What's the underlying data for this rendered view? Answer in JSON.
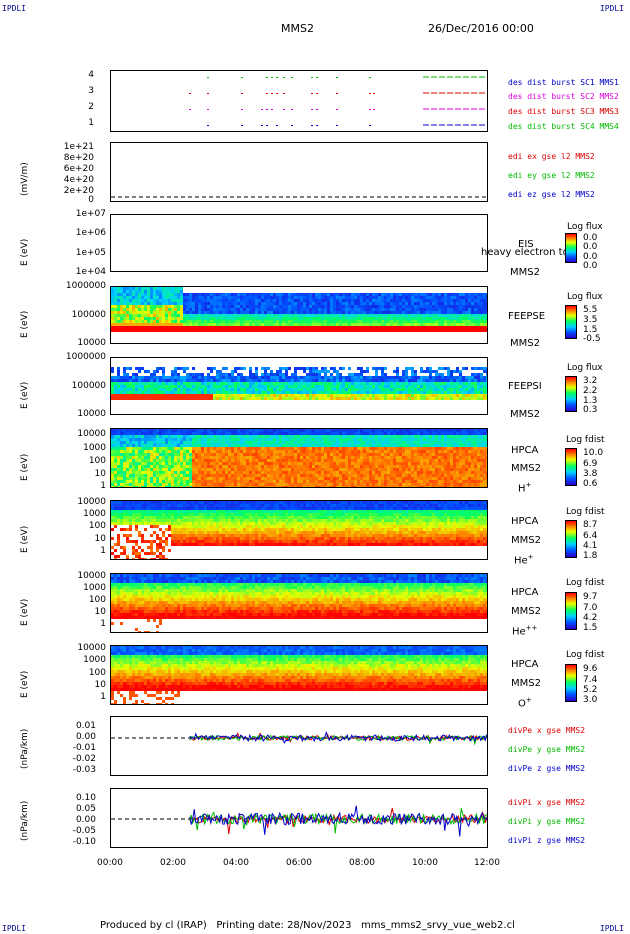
{
  "header": {
    "corner_tl": "IPDLI",
    "corner_tr": "IPDLI",
    "corner_bl": "IPDLI",
    "corner_br": "IPDLI",
    "mission": "MMS2",
    "date": "26/Dec/2016 00:00"
  },
  "footer": {
    "text": "Produced by cl (IRAP)   Printing date: 28/Nov/2023   mms_mms2_srvy_vue_web2.cl"
  },
  "x_ticks": [
    "00:00",
    "02:00",
    "04:00",
    "06:00",
    "08:00",
    "10:00",
    "12:00"
  ],
  "panels": {
    "burst": {
      "yticks": [
        "4",
        "3",
        "2",
        "1"
      ],
      "legend": [
        {
          "text": "des dist burst SC1 MMS1",
          "color": "#0000cc"
        },
        {
          "text": "des dist burst SC2 MMS2",
          "color": "#dd00dd"
        },
        {
          "text": "des dist burst SC3 MMS3",
          "color": "#dd0000"
        },
        {
          "text": "des dist burst SC4 MMS4",
          "color": "#00bb00"
        }
      ]
    },
    "edi": {
      "ylabel": "(mV/m)",
      "yticks": [
        "1e+21",
        "8e+20",
        "6e+20",
        "4e+20",
        "2e+20",
        "0"
      ],
      "legend": [
        {
          "text": "edi ex gse l2 MMS2",
          "color": "#dd0000"
        },
        {
          "text": "edi ey gse l2 MMS2",
          "color": "#00bb00"
        },
        {
          "text": "edi ez gse l2 MMS2",
          "color": "#0000cc"
        }
      ]
    },
    "eis": {
      "ylabel": "E (eV)",
      "yticks": [
        "1e+07",
        "1e+06",
        "1e+05",
        "1e+04"
      ],
      "inst": "EIS",
      "sc": "MMS2",
      "overlay": "heavy electron to",
      "cb_title": "Log flux",
      "cb_vals": [
        "0.0",
        "0.0",
        "0.0",
        "0.0"
      ]
    },
    "feepse": {
      "ylabel": "E (eV)",
      "yticks": [
        "1000000",
        "100000",
        "10000"
      ],
      "inst": "FEEPSE",
      "sc": "MMS2",
      "cb_title": "Log flux",
      "cb_vals": [
        "5.5",
        "3.5",
        "1.5",
        "-0.5"
      ]
    },
    "feepsi": {
      "ylabel": "E (eV)",
      "yticks": [
        "1000000",
        "100000",
        "10000"
      ],
      "inst": "FEEPSI",
      "sc": "MMS2",
      "cb_title": "Log flux",
      "cb_vals": [
        "3.2",
        "2.2",
        "1.3",
        "0.3"
      ]
    },
    "hpca_h": {
      "ylabel": "E (eV)",
      "yticks": [
        "10000",
        "1000",
        "100",
        "10",
        "1"
      ],
      "inst": "HPCA",
      "sc": "MMS2",
      "species": "H",
      "charge": "+",
      "cb_title": "Log fdist",
      "cb_vals": [
        "10.0",
        "6.9",
        "3.8",
        "0.6"
      ]
    },
    "hpca_he": {
      "ylabel": "E (eV)",
      "yticks": [
        "10000",
        "1000",
        "100",
        "10",
        "1"
      ],
      "inst": "HPCA",
      "sc": "MMS2",
      "species": "He",
      "charge": "+",
      "cb_title": "Log fdist",
      "cb_vals": [
        "8.7",
        "6.4",
        "4.1",
        "1.8"
      ]
    },
    "hpca_hepp": {
      "ylabel": "E (eV)",
      "yticks": [
        "10000",
        "1000",
        "100",
        "10",
        "1"
      ],
      "inst": "HPCA",
      "sc": "MMS2",
      "species": "He",
      "charge": "++",
      "cb_title": "Log fdist",
      "cb_vals": [
        "9.7",
        "7.0",
        "4.2",
        "1.5"
      ]
    },
    "hpca_o": {
      "ylabel": "E (eV)",
      "yticks": [
        "10000",
        "1000",
        "100",
        "10",
        "1"
      ],
      "inst": "HPCA",
      "sc": "MMS2",
      "species": "O",
      "charge": "+",
      "cb_title": "Log fdist",
      "cb_vals": [
        "9.6",
        "7.4",
        "5.2",
        "3.0"
      ]
    },
    "divpe": {
      "ylabel": "(nPa/km)",
      "yticks": [
        "0.01",
        "0.00",
        "-0.01",
        "-0.02",
        "-0.03"
      ],
      "legend": [
        {
          "text": "divPe x gse MMS2",
          "color": "#dd0000"
        },
        {
          "text": "divPe y gse MMS2",
          "color": "#00bb00"
        },
        {
          "text": "divPe z gse MMS2",
          "color": "#0000cc"
        }
      ]
    },
    "divpi": {
      "ylabel": "(nPa/km)",
      "yticks": [
        "0.10",
        "0.05",
        "0.00",
        "-0.05",
        "-0.10"
      ],
      "legend": [
        {
          "text": "divPi x gse MMS2",
          "color": "#dd0000"
        },
        {
          "text": "divPi y gse MMS2",
          "color": "#00bb00"
        },
        {
          "text": "divPi z gse MMS2",
          "color": "#0000cc"
        }
      ]
    }
  },
  "chart_data": [
    {
      "type": "scatter",
      "title": "des dist burst",
      "x_range": [
        "00:00",
        "12:00"
      ],
      "y_ticks": [
        1,
        2,
        3,
        4
      ]
    },
    {
      "type": "line",
      "ylabel": "(mV/m)",
      "ylim": [
        0,
        1e+21
      ]
    },
    {
      "type": "heatmap",
      "ylabel": "E (eV)",
      "scale": "log",
      "ylim": [
        10000.0,
        10000000.0
      ],
      "colorbar": "Log flux"
    },
    {
      "type": "heatmap",
      "ylabel": "E (eV)",
      "scale": "log",
      "ylim": [
        10000.0,
        1000000.0
      ],
      "colorbar": "Log flux",
      "cb_range": [
        -0.5,
        5.5
      ]
    },
    {
      "type": "heatmap",
      "ylabel": "E (eV)",
      "scale": "log",
      "ylim": [
        10000.0,
        1000000.0
      ],
      "colorbar": "Log flux",
      "cb_range": [
        0.3,
        3.2
      ]
    },
    {
      "type": "heatmap",
      "ylabel": "E (eV)",
      "scale": "log",
      "ylim": [
        1,
        10000.0
      ],
      "colorbar": "Log fdist",
      "cb_range": [
        0.6,
        10.0
      ]
    },
    {
      "type": "heatmap",
      "ylabel": "E (eV)",
      "scale": "log",
      "ylim": [
        1,
        10000.0
      ],
      "colorbar": "Log fdist",
      "cb_range": [
        1.8,
        8.7
      ]
    },
    {
      "type": "heatmap",
      "ylabel": "E (eV)",
      "scale": "log",
      "ylim": [
        1,
        10000.0
      ],
      "colorbar": "Log fdist",
      "cb_range": [
        1.5,
        9.7
      ]
    },
    {
      "type": "heatmap",
      "ylabel": "E (eV)",
      "scale": "log",
      "ylim": [
        1,
        10000.0
      ],
      "colorbar": "Log fdist",
      "cb_range": [
        3.0,
        9.6
      ]
    },
    {
      "type": "line",
      "ylabel": "(nPa/km)",
      "ylim": [
        -0.035,
        0.015
      ],
      "series_start": "02:30"
    },
    {
      "type": "line",
      "ylabel": "(nPa/km)",
      "ylim": [
        -0.12,
        0.12
      ],
      "series_start": "02:30"
    }
  ]
}
